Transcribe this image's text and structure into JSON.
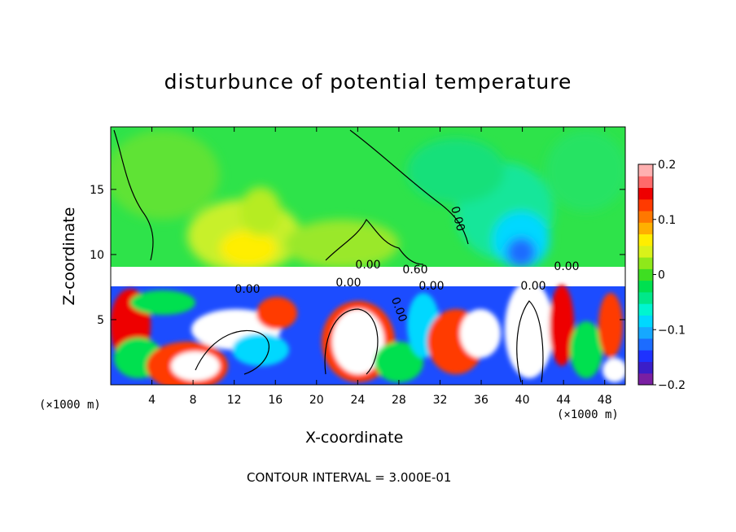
{
  "chart_data": {
    "type": "heatmap",
    "title": "disturbunce of potential temperature",
    "xlabel": "X-coordinate",
    "ylabel": "Z-coordinate",
    "x_unit_left": "(×1000 m)",
    "x_unit_right": "(×1000 m)",
    "x_ticks": [
      4,
      8,
      12,
      16,
      20,
      24,
      28,
      32,
      36,
      40,
      44,
      48
    ],
    "y_ticks": [
      5,
      10,
      15
    ],
    "xlim": [
      0,
      50
    ],
    "ylim": [
      0,
      19.8
    ],
    "colorbar": {
      "ticks": [
        "0.2",
        "0.1",
        "0",
        "−0.1",
        "−0.2"
      ],
      "range": [
        -0.2,
        0.2
      ],
      "colors": [
        "#7a1fa2",
        "#3b1ec8",
        "#1e32ff",
        "#1c6cff",
        "#16a8ff",
        "#00d8ff",
        "#00f5d0",
        "#00e88a",
        "#00e050",
        "#3ede22",
        "#8fe81a",
        "#d9f21a",
        "#ffee00",
        "#ffb000",
        "#ff7800",
        "#ff3a00",
        "#ee0000",
        "#ff6a6a",
        "#ffb0b0"
      ]
    },
    "contour_labels": [
      "0.00",
      "0.00",
      "0.60",
      "0.00",
      "0.00",
      "0.00",
      "0.00",
      "0.00",
      "0.00"
    ],
    "footnote": "CONTOUR INTERVAL = 3.000E-01"
  }
}
